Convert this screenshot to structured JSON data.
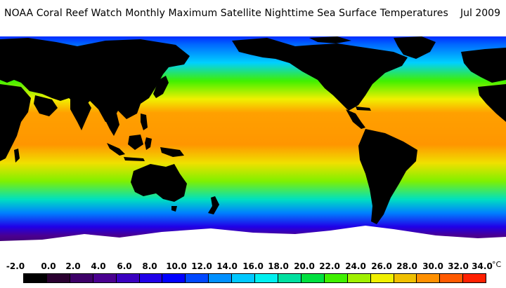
{
  "header": {
    "title": "NOAA Coral Reef Watch Monthly Maximum Satellite Nighttime Sea Surface Temperatures",
    "date": "Jul 2009"
  },
  "legend": {
    "unit": "°C",
    "ticks": [
      "-2.0",
      "0.0",
      "2.0",
      "4.0",
      "6.0",
      "8.0",
      "10.0",
      "12.0",
      "14.0",
      "16.0",
      "18.0",
      "20.0",
      "22.0",
      "24.0",
      "26.0",
      "28.0",
      "30.0",
      "32.0",
      "34.0"
    ],
    "colors": [
      "#000000",
      "#2a0030",
      "#3d0068",
      "#4a0090",
      "#3a00c0",
      "#2000e8",
      "#0000ff",
      "#0048ff",
      "#0090ff",
      "#00c8ff",
      "#00f0f0",
      "#00e0a0",
      "#00e040",
      "#40f000",
      "#a0f000",
      "#f0f000",
      "#f0c000",
      "#ff9000",
      "#ff5a00",
      "#ff2000"
    ],
    "land_color": "#000000",
    "ice_color": "#ffffff"
  }
}
